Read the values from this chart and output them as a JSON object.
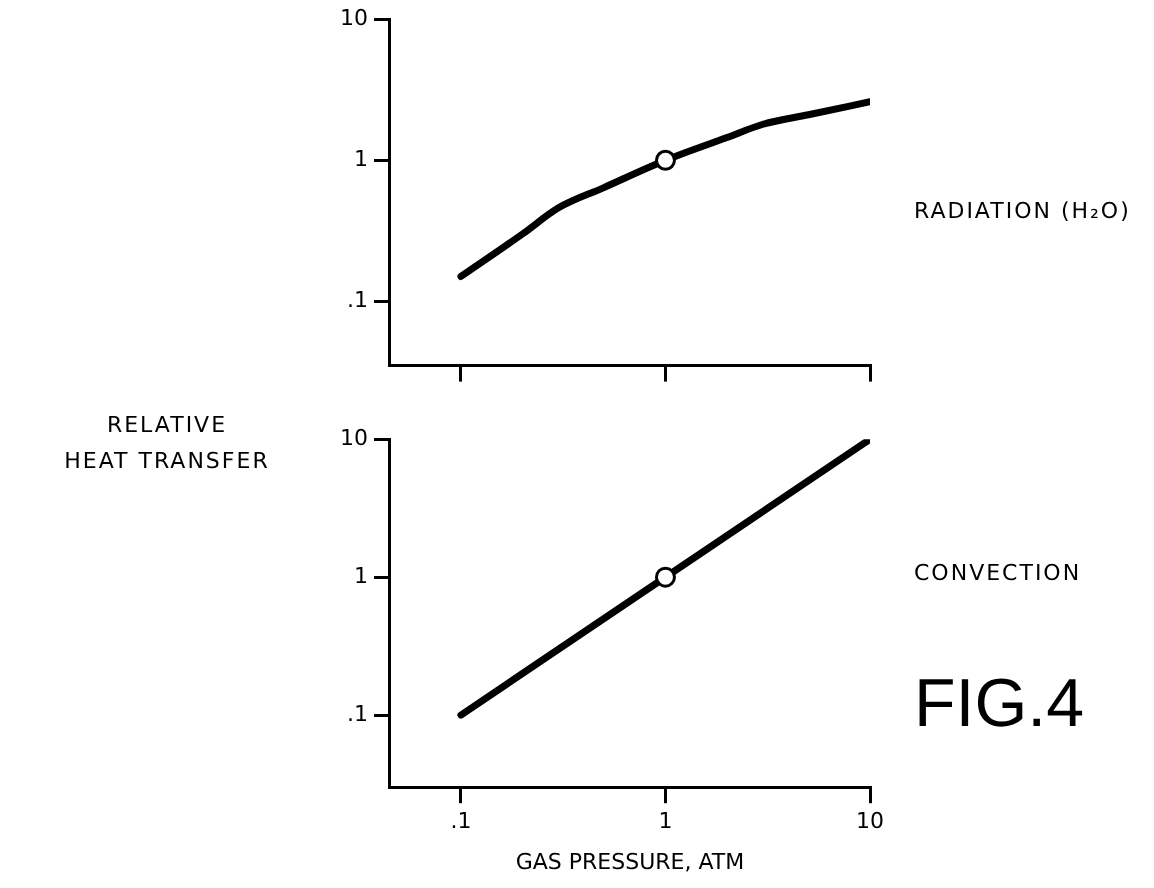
{
  "chart_data": [
    {
      "type": "line",
      "ylabel": "RELATIVE HEAT TRANSFER",
      "log": "xy",
      "grid": false,
      "legend": false,
      "tick_labels": "y",
      "xlim": [
        0.045,
        10
      ],
      "ylim": [
        0.035,
        10
      ],
      "xticks": [
        {
          "value": 0.1,
          "label": null
        },
        {
          "value": 1,
          "label": null
        },
        {
          "value": 10,
          "label": null
        }
      ],
      "yticks": [
        {
          "value": 0.1,
          "label": ".1"
        },
        {
          "value": 1,
          "label": "1"
        },
        {
          "value": 10,
          "label": "10"
        }
      ],
      "series": [
        {
          "type": "line",
          "color": "#000000",
          "marker": "none",
          "x": [
            0.1,
            0.2,
            0.3,
            0.5,
            1,
            2,
            3,
            5,
            10
          ],
          "values": [
            0.15,
            0.3,
            0.46,
            0.64,
            1,
            1.45,
            1.8,
            2.1,
            2.6
          ]
        },
        {
          "type": "scatter",
          "color": "#000000",
          "marker": "circle",
          "x": [
            1
          ],
          "values": [
            1
          ]
        }
      ],
      "annotations": [
        "RADIATION (H₂O)"
      ]
    },
    {
      "type": "line",
      "xlabel": "GAS PRESSURE, ATM",
      "log": "xy",
      "grid": false,
      "legend": false,
      "xlim": [
        0.045,
        10
      ],
      "ylim": [
        0.03,
        10
      ],
      "xticks": [
        {
          "value": 0.1,
          "label": ".1"
        },
        {
          "value": 1,
          "label": "1"
        },
        {
          "value": 10,
          "label": "10"
        }
      ],
      "yticks": [
        {
          "value": 0.1,
          "label": ".1"
        },
        {
          "value": 1,
          "label": "1"
        },
        {
          "value": 10,
          "label": "10"
        }
      ],
      "series": [
        {
          "type": "line",
          "color": "#000000",
          "marker": "none",
          "x": [
            0.1,
            10
          ],
          "values": [
            0.1,
            10
          ]
        },
        {
          "type": "scatter",
          "color": "#000000",
          "marker": "circle",
          "x": [
            1
          ],
          "values": [
            1
          ]
        }
      ],
      "annotations": [
        "CONVECTION",
        "FIG.4"
      ]
    }
  ]
}
